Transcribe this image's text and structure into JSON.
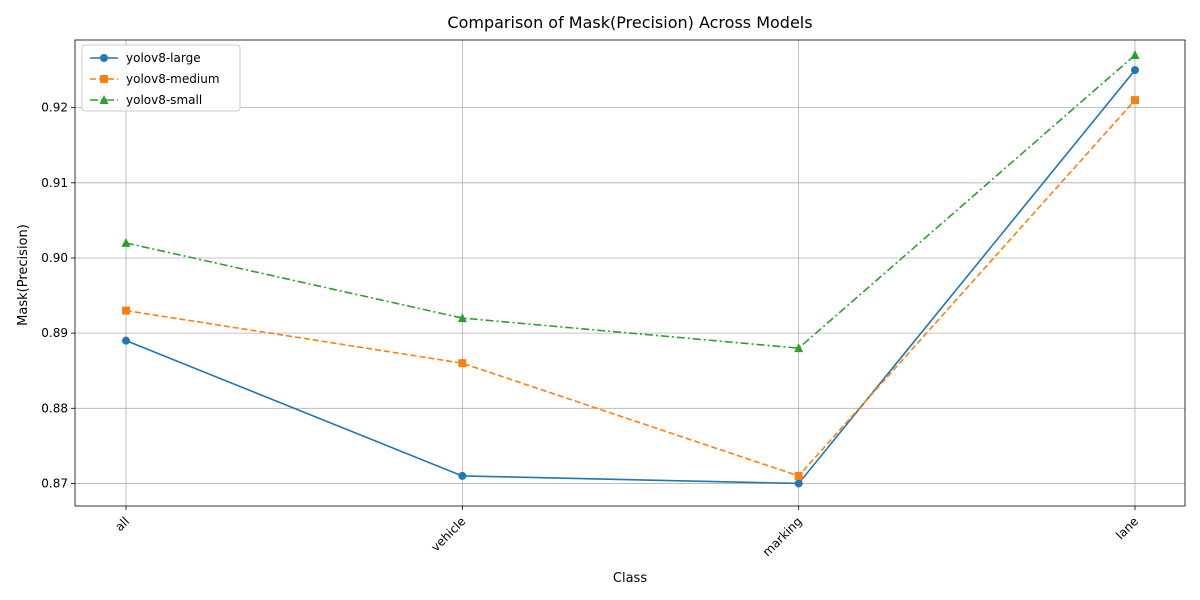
{
  "chart_data": {
    "type": "line",
    "title": "Comparison of Mask(Precision) Across Models",
    "xlabel": "Class",
    "ylabel": "Mask(Precision)",
    "categories": [
      "all",
      "vehicle",
      "marking",
      "lane"
    ],
    "ylim": [
      0.867,
      0.929
    ],
    "yticks": [
      0.87,
      0.88,
      0.89,
      0.9,
      0.91,
      0.92
    ],
    "ytick_labels": [
      "0.87",
      "0.88",
      "0.89",
      "0.90",
      "0.91",
      "0.92"
    ],
    "grid": true,
    "legend_position": "top-left",
    "series": [
      {
        "name": "yolov8-large",
        "values": [
          0.889,
          0.871,
          0.87,
          0.925
        ],
        "color": "#1f77b4",
        "linestyle": "solid",
        "marker": "circle"
      },
      {
        "name": "yolov8-medium",
        "values": [
          0.893,
          0.886,
          0.871,
          0.921
        ],
        "color": "#ff7f0e",
        "linestyle": "dashed",
        "marker": "square"
      },
      {
        "name": "yolov8-small",
        "values": [
          0.902,
          0.892,
          0.888,
          0.927
        ],
        "color": "#2ca02c",
        "linestyle": "dashdot",
        "marker": "triangle"
      }
    ]
  }
}
